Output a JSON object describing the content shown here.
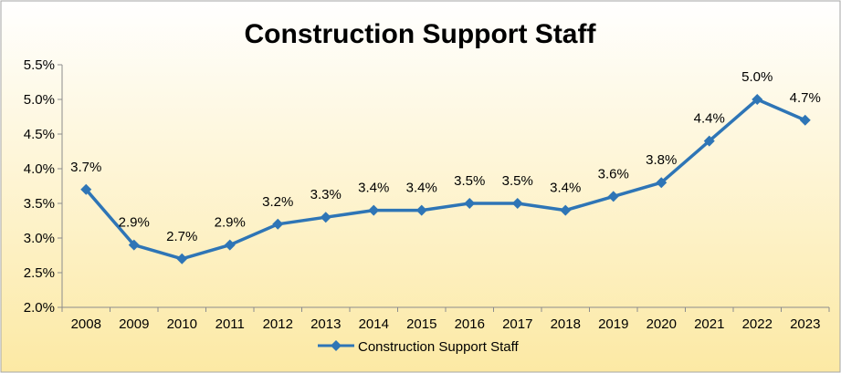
{
  "chart_data": {
    "type": "line",
    "title": "Construction Support Staff",
    "categories": [
      "2008",
      "2009",
      "2010",
      "2011",
      "2012",
      "2013",
      "2014",
      "2015",
      "2016",
      "2017",
      "2018",
      "2019",
      "2020",
      "2021",
      "2022",
      "2023"
    ],
    "series": [
      {
        "name": "Construction Support Staff",
        "values": [
          3.7,
          2.9,
          2.7,
          2.9,
          3.2,
          3.3,
          3.4,
          3.4,
          3.5,
          3.5,
          3.4,
          3.6,
          3.8,
          4.4,
          5.0,
          4.7
        ],
        "labels": [
          "3.7%",
          "2.9%",
          "2.7%",
          "2.9%",
          "3.2%",
          "3.3%",
          "3.4%",
          "3.4%",
          "3.5%",
          "3.5%",
          "3.4%",
          "3.6%",
          "3.8%",
          "4.4%",
          "5.0%",
          "4.7%"
        ],
        "color": "#2E75B6",
        "marker": "diamond"
      }
    ],
    "y_ticks": [
      "2.0%",
      "2.5%",
      "3.0%",
      "3.5%",
      "4.0%",
      "4.5%",
      "5.0%",
      "5.5%"
    ],
    "ylim": [
      2.0,
      5.5
    ],
    "grid": false,
    "legend_position": "bottom",
    "background_gradient": [
      "#FFFFFF",
      "#FCE9A4"
    ]
  }
}
